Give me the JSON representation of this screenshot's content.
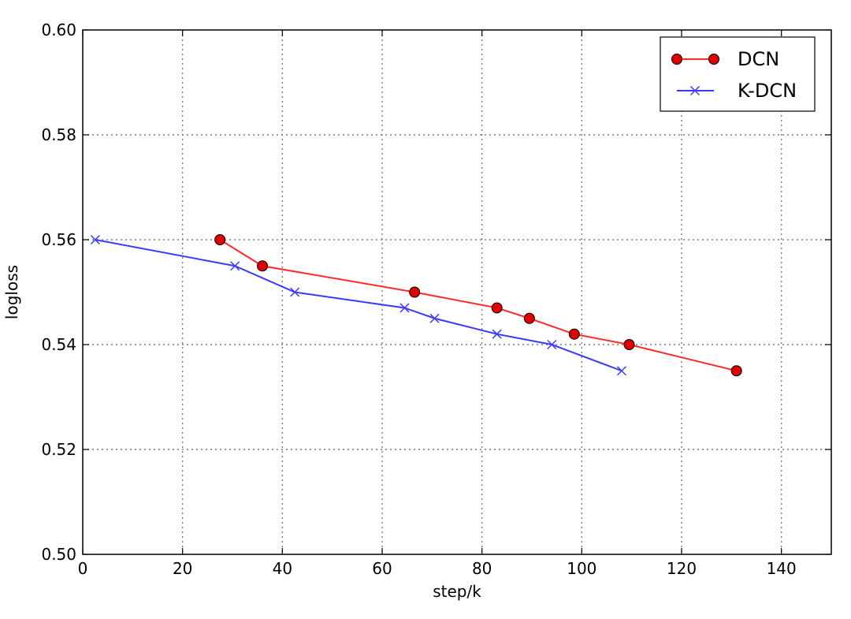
{
  "chart_data": {
    "type": "line",
    "title": "",
    "xlabel": "step/k",
    "ylabel": "logloss",
    "xlim": [
      0,
      150
    ],
    "ylim": [
      0.5,
      0.6
    ],
    "x_ticks": [
      0,
      20,
      40,
      60,
      80,
      100,
      120,
      140
    ],
    "y_ticks": [
      0.5,
      0.52,
      0.54,
      0.56,
      0.58,
      0.6
    ],
    "x_tick_labels": [
      "0",
      "20",
      "40",
      "60",
      "80",
      "100",
      "120",
      "140"
    ],
    "y_tick_labels": [
      "0.50",
      "0.52",
      "0.54",
      "0.56",
      "0.58",
      "0.60"
    ],
    "grid": true,
    "legend_position": "top-right",
    "series": [
      {
        "name": "DCN",
        "color": "#ff2a2a",
        "marker": "circle",
        "marker_color": "#e00000",
        "points": [
          [
            27.5,
            0.56
          ],
          [
            36.0,
            0.555
          ],
          [
            66.5,
            0.55
          ],
          [
            83.0,
            0.547
          ],
          [
            89.5,
            0.545
          ],
          [
            98.5,
            0.542
          ],
          [
            109.5,
            0.54
          ],
          [
            131.0,
            0.535
          ]
        ]
      },
      {
        "name": "K-DCN",
        "color": "#3a3aff",
        "marker": "x",
        "marker_color": "#3a3aff",
        "points": [
          [
            2.5,
            0.56
          ],
          [
            30.5,
            0.555
          ],
          [
            42.5,
            0.55
          ],
          [
            64.5,
            0.547
          ],
          [
            70.5,
            0.545
          ],
          [
            83.0,
            0.542
          ],
          [
            94.0,
            0.54
          ],
          [
            108.0,
            0.535
          ]
        ]
      }
    ]
  }
}
